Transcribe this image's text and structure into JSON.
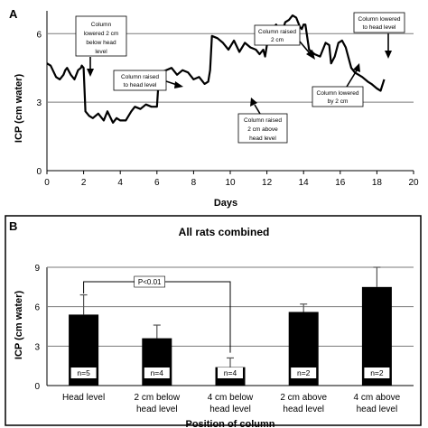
{
  "chart_data": [
    {
      "panel": "A",
      "type": "line",
      "xlabel": "Days",
      "ylabel": "ICP (cm water)",
      "xlim": [
        0,
        20
      ],
      "ylim": [
        0,
        7
      ],
      "x_ticks": [
        0,
        2,
        4,
        6,
        8,
        10,
        12,
        14,
        16,
        18,
        20
      ],
      "y_ticks": [
        0,
        3,
        6
      ],
      "grid": "horizontal",
      "series": [
        {
          "x": [
            0.0,
            0.2,
            0.5,
            0.7,
            0.9,
            1.0,
            1.1,
            1.3,
            1.5,
            1.7,
            1.85,
            1.9,
            2.0,
            2.1,
            2.3,
            2.5,
            2.8,
            3.1,
            3.3,
            3.6,
            3.8,
            4.0,
            4.3,
            4.6,
            4.8,
            5.1,
            5.4,
            5.7,
            6.0,
            6.1,
            6.2,
            6.5,
            6.8,
            7.1,
            7.4,
            7.7,
            8.0,
            8.3,
            8.6,
            8.8,
            8.9,
            9.0,
            9.3,
            9.6,
            9.9,
            10.2,
            10.5,
            10.8,
            11.1,
            11.4,
            11.6,
            11.8,
            11.9,
            12.0,
            12.2,
            12.5,
            12.8,
            13.0,
            13.2,
            13.4,
            13.6,
            13.8,
            13.9,
            14.0,
            14.1,
            14.3,
            14.6,
            14.9,
            15.2,
            15.4,
            15.5,
            15.7,
            15.9,
            16.1,
            16.3,
            16.6,
            16.8,
            17.0,
            17.2,
            17.5,
            17.7,
            18.0,
            18.2,
            18.4
          ],
          "values": [
            4.7,
            4.6,
            4.1,
            4.0,
            4.2,
            4.4,
            4.5,
            4.2,
            4.0,
            4.4,
            4.5,
            4.6,
            4.5,
            2.6,
            2.4,
            2.3,
            2.5,
            2.2,
            2.6,
            2.1,
            2.3,
            2.2,
            2.2,
            2.6,
            2.8,
            2.7,
            2.9,
            2.8,
            2.8,
            4.0,
            4.3,
            4.4,
            4.5,
            4.2,
            4.4,
            4.3,
            4.0,
            4.1,
            3.8,
            3.9,
            4.4,
            5.9,
            5.8,
            5.6,
            5.3,
            5.7,
            5.2,
            5.6,
            5.4,
            5.3,
            5.1,
            5.3,
            5.0,
            5.5,
            6.1,
            6.4,
            6.0,
            6.5,
            6.6,
            6.8,
            6.7,
            6.3,
            6.2,
            6.4,
            6.4,
            5.3,
            5.1,
            5.0,
            5.6,
            5.5,
            4.7,
            5.0,
            5.6,
            5.7,
            5.4,
            4.5,
            4.3,
            4.2,
            4.1,
            3.9,
            3.8,
            3.6,
            3.5,
            4.0
          ]
        }
      ],
      "annotations": [
        {
          "text": [
            "Column",
            "lowered 2 cm",
            "below head",
            "level"
          ]
        },
        {
          "text": [
            "Column raised",
            "to head level"
          ]
        },
        {
          "text": [
            "Column raised",
            "2 cm above",
            "head level"
          ]
        },
        {
          "text": [
            "Column raised",
            "2 cm"
          ]
        },
        {
          "text": [
            "Column lowered",
            "to head level"
          ]
        },
        {
          "text": [
            "Column lowered",
            "by 2 cm"
          ]
        }
      ]
    },
    {
      "panel": "B",
      "type": "bar",
      "title": "All rats combined",
      "xlabel": "Position of column",
      "ylabel": "ICP (cm water)",
      "ylim": [
        0,
        9
      ],
      "y_ticks": [
        0,
        3,
        6,
        9
      ],
      "grid": "horizontal",
      "bar_color": "#000000",
      "categories": [
        [
          "Head level"
        ],
        [
          "2 cm below",
          "head level"
        ],
        [
          "4 cm below",
          "head level"
        ],
        [
          "2 cm above",
          "head level"
        ],
        [
          "4 cm above",
          "head level"
        ]
      ],
      "values": [
        5.4,
        3.6,
        1.4,
        5.6,
        7.5
      ],
      "error_upper": [
        6.9,
        4.6,
        2.1,
        6.2,
        9.0
      ],
      "n_labels": [
        "n=5",
        "n=4",
        "n=4",
        "n=2",
        "n=2"
      ],
      "significance": {
        "text": "P<0.01",
        "between": [
          0,
          2
        ]
      }
    }
  ]
}
